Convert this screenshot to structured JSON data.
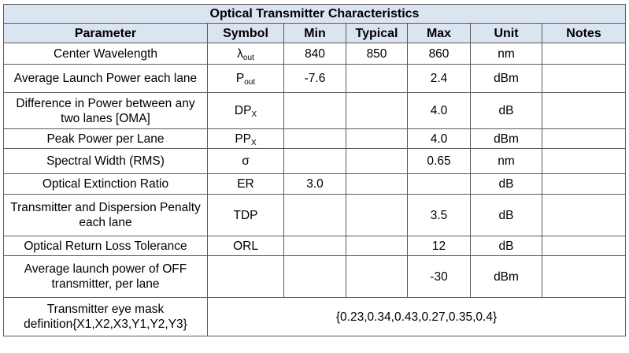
{
  "title": "Optical Transmitter Characteristics",
  "headers": [
    "Parameter",
    "Symbol",
    "Min",
    "Typical",
    "Max",
    "Unit",
    "Notes"
  ],
  "rows": [
    {
      "parameter": "Center Wavelength",
      "symbol": "λ",
      "symbol_sub": "out",
      "min": "840",
      "typical": "850",
      "max": "860",
      "unit": "nm",
      "notes": ""
    },
    {
      "parameter": "Average Launch Power each lane",
      "symbol": "P",
      "symbol_sub": "out",
      "min": "-7.6",
      "typical": "",
      "max": "2.4",
      "unit": "dBm",
      "notes": ""
    },
    {
      "parameter": "Difference in Power between any two lanes [OMA]",
      "symbol": "DP",
      "symbol_sub": "X",
      "min": "",
      "typical": "",
      "max": "4.0",
      "unit": "dB",
      "notes": ""
    },
    {
      "parameter": "Peak Power per Lane",
      "symbol": "PP",
      "symbol_sub": "X",
      "min": "",
      "typical": "",
      "max": "4.0",
      "unit": "dBm",
      "notes": ""
    },
    {
      "parameter": "Spectral Width (RMS)",
      "symbol": "σ",
      "symbol_sub": "",
      "min": "",
      "typical": "",
      "max": "0.65",
      "unit": "nm",
      "notes": ""
    },
    {
      "parameter": "Optical Extinction Ratio",
      "symbol": "ER",
      "symbol_sub": "",
      "min": "3.0",
      "typical": "",
      "max": "",
      "unit": "dB",
      "notes": ""
    },
    {
      "parameter": "Transmitter and Dispersion Penalty each lane",
      "symbol": "TDP",
      "symbol_sub": "",
      "min": "",
      "typical": "",
      "max": "3.5",
      "unit": "dB",
      "notes": ""
    },
    {
      "parameter": "Optical Return Loss Tolerance",
      "symbol": "ORL",
      "symbol_sub": "",
      "min": "",
      "typical": "",
      "max": "12",
      "unit": "dB",
      "notes": ""
    },
    {
      "parameter": "Average launch power of OFF transmitter, per lane",
      "symbol": "",
      "symbol_sub": "",
      "min": "",
      "typical": "",
      "max": "-30",
      "unit": "dBm",
      "notes": ""
    }
  ],
  "eye_mask": {
    "parameter": "Transmitter eye mask definition{X1,X2,X3,Y1,Y2,Y3}",
    "value": "{0.23,0.34,0.43,0.27,0.35,0.4}"
  }
}
